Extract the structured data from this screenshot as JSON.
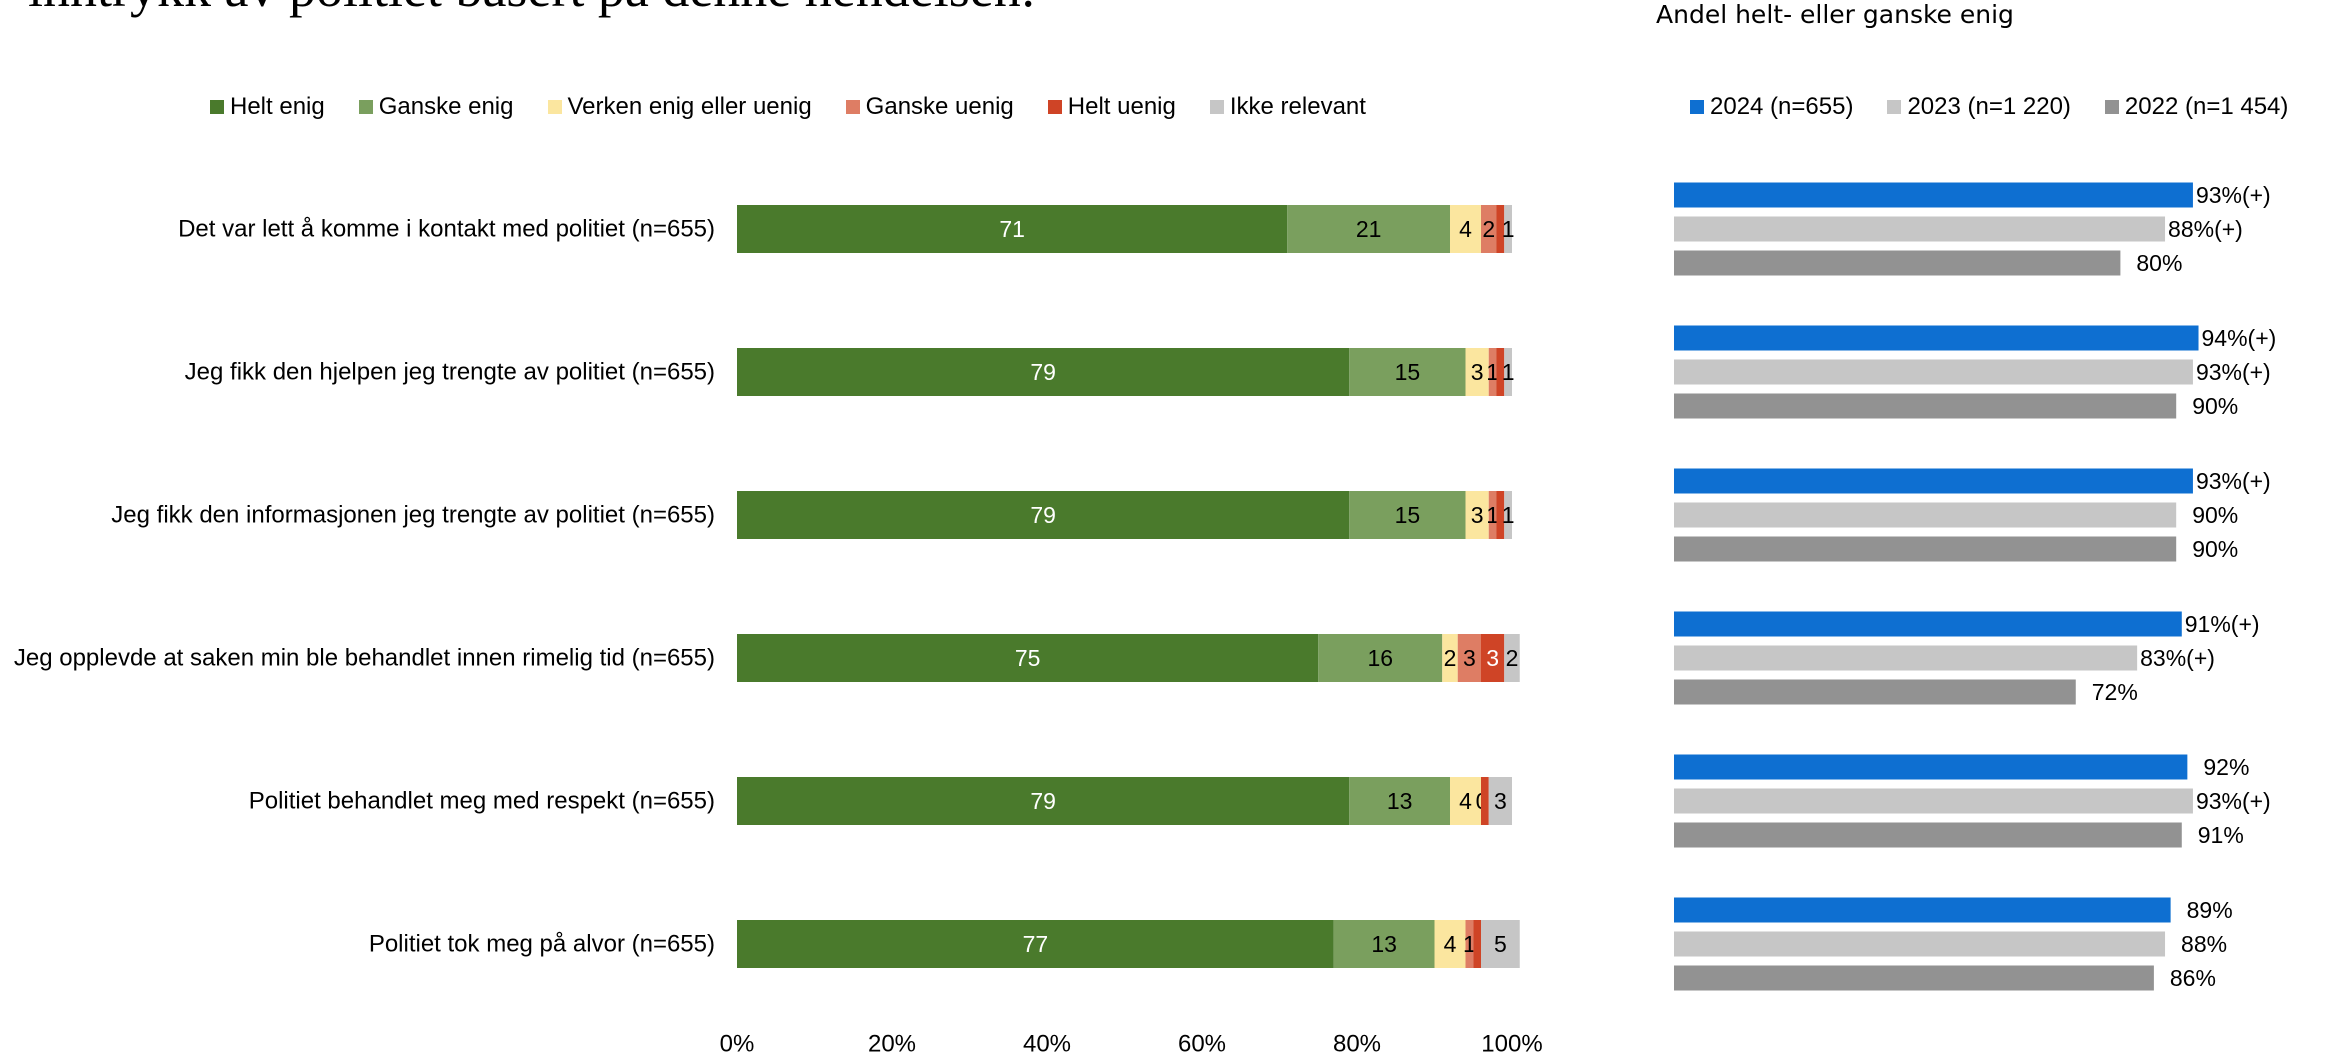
{
  "heading": "inntrykk av politiet basert på denne hendelsen:",
  "subtitle": "Andel helt- eller ganske enig",
  "colors": {
    "helt_enig": "#4a7a2c",
    "ganske_enig": "#7a9f5e",
    "verken": "#fbe69f",
    "ganske_uenig": "#de7d64",
    "helt_uenig": "#cf4426",
    "ikke_relevant": "#c6c6c6",
    "y2024": "#0e6fd1",
    "y2023": "#c6c6c6",
    "y2022": "#929292"
  },
  "chart_data": [
    {
      "type": "bar",
      "orientation": "horizontal",
      "stacked": true,
      "categories": [
        "Det var lett å komme i kontakt med politiet (n=655)",
        "Jeg fikk den hjelpen jeg trengte av politiet (n=655)",
        "Jeg fikk den informasjonen jeg trengte av politiet (n=655)",
        "Jeg opplevde at saken min ble behandlet innen rimelig tid (n=655)",
        "Politiet behandlet meg med respekt (n=655)",
        "Politiet tok meg på alvor (n=655)"
      ],
      "series": [
        {
          "name": "Helt enig",
          "values": [
            71,
            79,
            79,
            75,
            79,
            77
          ],
          "labels": [
            "71",
            "79",
            "79",
            "75",
            "79",
            "77"
          ]
        },
        {
          "name": "Ganske enig",
          "values": [
            21,
            15,
            15,
            16,
            13,
            13
          ],
          "labels": [
            "21",
            "15",
            "15",
            "16",
            "13",
            "13"
          ]
        },
        {
          "name": "Verken enig eller uenig",
          "values": [
            4,
            3,
            3,
            2,
            4,
            4
          ],
          "labels": [
            "4",
            "3",
            "3",
            "2",
            "4",
            "4"
          ]
        },
        {
          "name": "Ganske uenig",
          "values": [
            2,
            1,
            1,
            3,
            0,
            1
          ],
          "labels": [
            "2",
            "1",
            "1",
            "3",
            "0",
            "1"
          ]
        },
        {
          "name": "Helt uenig",
          "values": [
            1,
            1,
            1,
            3,
            1,
            1
          ],
          "labels": [
            "",
            "",
            "",
            "3",
            "",
            ""
          ]
        },
        {
          "name": "Ikke relevant",
          "values": [
            1,
            1,
            1,
            2,
            3,
            5
          ],
          "labels": [
            "1",
            "1",
            "1",
            "2",
            "3",
            "5"
          ]
        }
      ],
      "xlim": [
        0,
        100
      ],
      "xticks": [
        "0%",
        "20%",
        "40%",
        "60%",
        "80%",
        "100%"
      ],
      "legend_position": "top"
    },
    {
      "type": "bar",
      "orientation": "horizontal",
      "title": "Andel helt- eller ganske enig",
      "series": [
        {
          "name": "2024 (n=655)",
          "values": [
            93,
            94,
            93,
            91,
            92,
            89
          ],
          "labels": [
            "93%(+)",
            "94%(+)",
            "93%(+)",
            "91%(+)",
            "92%",
            "89%"
          ]
        },
        {
          "name": "2023 (n=1 220)",
          "values": [
            88,
            93,
            90,
            83,
            93,
            88
          ],
          "labels": [
            "88%(+)",
            "93%(+)",
            "90%",
            "83%(+)",
            "93%(+)",
            "88%"
          ]
        },
        {
          "name": "2022 (n=1 454)",
          "values": [
            80,
            90,
            90,
            72,
            91,
            86
          ],
          "labels": [
            "80%",
            "90%",
            "90%",
            "72%",
            "91%",
            "86%"
          ]
        }
      ],
      "xlim": [
        0,
        100
      ],
      "legend_position": "top"
    }
  ]
}
